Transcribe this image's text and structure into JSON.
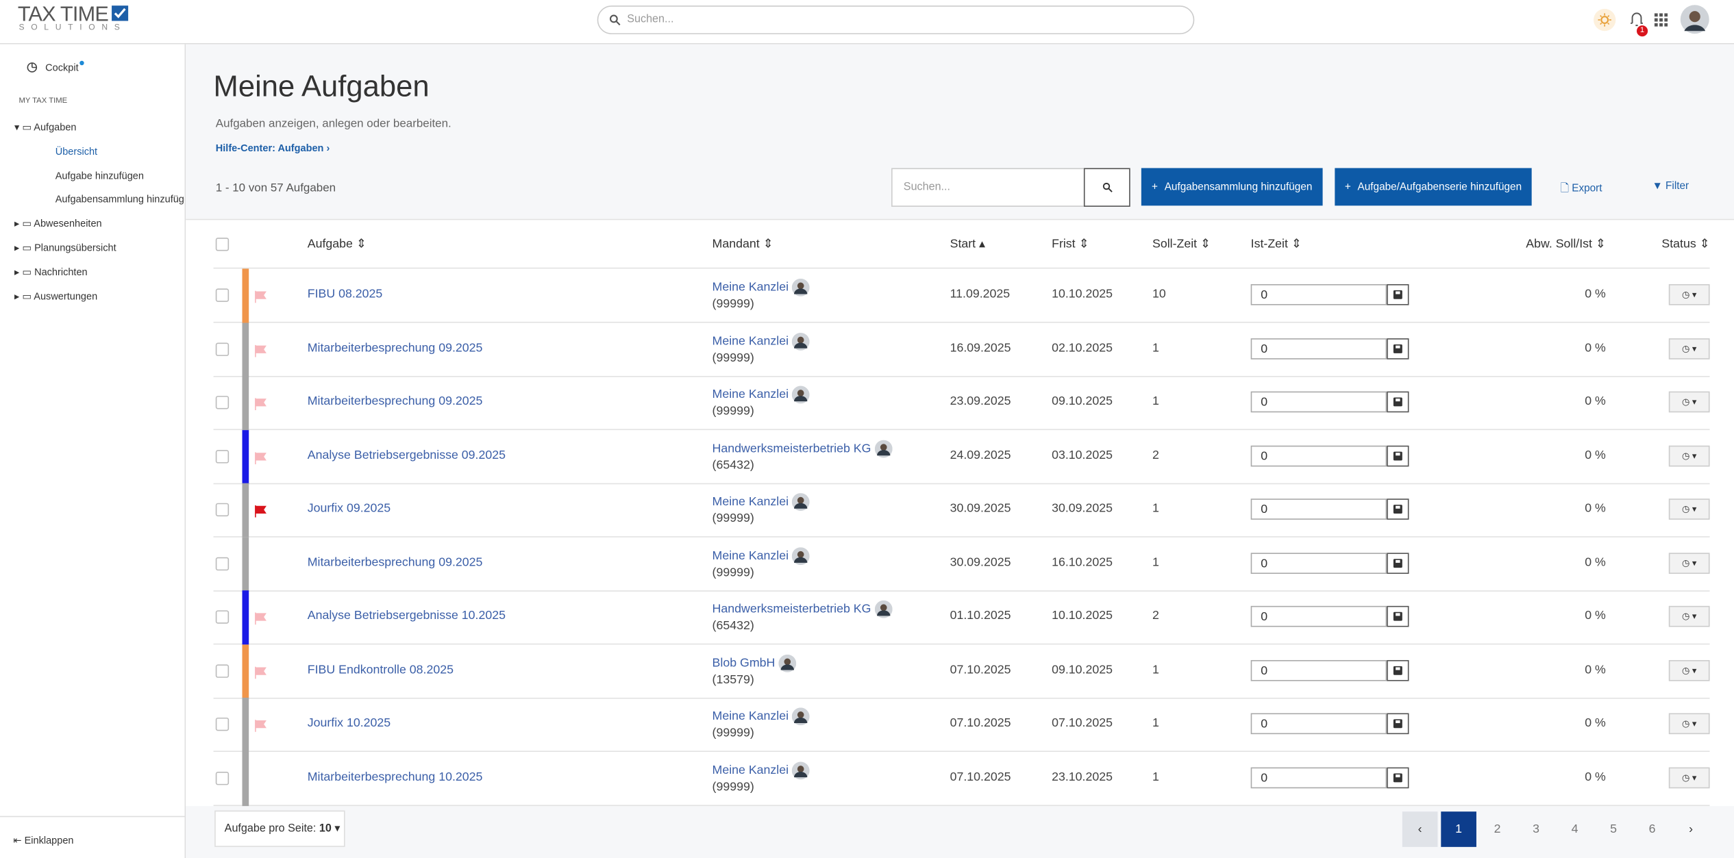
{
  "header": {
    "logo_line1": "TAX TIME",
    "logo_line2": "SOLUTIONS",
    "search_placeholder": "Suchen...",
    "notification_count": "1"
  },
  "sidebar": {
    "cockpit": "Cockpit",
    "section": "MY TAX TIME",
    "nav": [
      {
        "label": "Aufgaben",
        "children": [
          "Übersicht",
          "Aufgabe hinzufügen",
          "Aufgabensammlung hinzufügen"
        ]
      },
      {
        "label": "Abwesenheiten"
      },
      {
        "label": "Planungsübersicht"
      },
      {
        "label": "Nachrichten"
      },
      {
        "label": "Auswertungen"
      }
    ],
    "collapse": "Einklappen"
  },
  "page": {
    "title": "Meine Aufgaben",
    "subtitle": "Aufgaben anzeigen, anlegen oder bearbeiten.",
    "help_link": "Hilfe-Center: Aufgaben",
    "count": "1 - 10 von 57 Aufgaben",
    "search_placeholder": "Suchen...",
    "buttons": [
      "Aufgabensammlung hinzufügen",
      "Aufgabe/Aufgabenserie hinzufügen"
    ],
    "export": "Export",
    "filter": "Filter"
  },
  "table": {
    "columns": [
      "Aufgabe",
      "Mandant",
      "Start",
      "Frist",
      "Soll-Zeit",
      "Ist-Zeit",
      "Abw. Soll/Ist",
      "Status"
    ],
    "rows": [
      {
        "stripe": "#f0954a",
        "flag": "#f7b6bb",
        "task": "FIBU 08.2025",
        "client": "Meine Kanzlei",
        "client_id": "(99999)",
        "start": "11.09.2025",
        "due": "10.10.2025",
        "target": 10,
        "actual": "0",
        "deviation": "0 %"
      },
      {
        "stripe": "#a6a6a6",
        "flag": "#f7b6bb",
        "task": "Mitarbeiterbesprechung 09.2025",
        "client": "Meine Kanzlei",
        "client_id": "(99999)",
        "start": "16.09.2025",
        "due": "02.10.2025",
        "target": 1,
        "actual": "0",
        "deviation": "0 %"
      },
      {
        "stripe": "#a6a6a6",
        "flag": "#f7b6bb",
        "task": "Mitarbeiterbesprechung 09.2025",
        "client": "Meine Kanzlei",
        "client_id": "(99999)",
        "start": "23.09.2025",
        "due": "09.10.2025",
        "target": 1,
        "actual": "0",
        "deviation": "0 %"
      },
      {
        "stripe": "#1a1ae6",
        "flag": "#f7b6bb",
        "task": "Analyse Betriebsergebnisse 09.2025",
        "client": "Handwerksmeisterbetrieb KG",
        "client_id": "(65432)",
        "start": "24.09.2025",
        "due": "03.10.2025",
        "target": 2,
        "actual": "0",
        "deviation": "0 %"
      },
      {
        "stripe": "#a6a6a6",
        "flag": "#d9141c",
        "task": "Jourfix 09.2025",
        "client": "Meine Kanzlei",
        "client_id": "(99999)",
        "start": "30.09.2025",
        "due": "30.09.2025",
        "target": 1,
        "actual": "0",
        "deviation": "0 %"
      },
      {
        "stripe": "#a6a6a6",
        "flag": null,
        "task": "Mitarbeiterbesprechung 09.2025",
        "client": "Meine Kanzlei",
        "client_id": "(99999)",
        "start": "30.09.2025",
        "due": "16.10.2025",
        "target": 1,
        "actual": "0",
        "deviation": "0 %"
      },
      {
        "stripe": "#1a1ae6",
        "flag": "#f7b6bb",
        "task": "Analyse Betriebsergebnisse 10.2025",
        "client": "Handwerksmeisterbetrieb KG",
        "client_id": "(65432)",
        "start": "01.10.2025",
        "due": "10.10.2025",
        "target": 2,
        "actual": "0",
        "deviation": "0 %"
      },
      {
        "stripe": "#f0954a",
        "flag": "#f7b6bb",
        "task": "FIBU Endkontrolle 08.2025",
        "client": "Blob GmbH",
        "client_id": "(13579)",
        "start": "07.10.2025",
        "due": "09.10.2025",
        "target": 1,
        "actual": "0",
        "deviation": "0 %"
      },
      {
        "stripe": "#a6a6a6",
        "flag": "#f7b6bb",
        "task": "Jourfix 10.2025",
        "client": "Meine Kanzlei",
        "client_id": "(99999)",
        "start": "07.10.2025",
        "due": "07.10.2025",
        "target": 1,
        "actual": "0",
        "deviation": "0 %"
      },
      {
        "stripe": "#a6a6a6",
        "flag": null,
        "task": "Mitarbeiterbesprechung 10.2025",
        "client": "Meine Kanzlei",
        "client_id": "(99999)",
        "start": "07.10.2025",
        "due": "23.10.2025",
        "target": 1,
        "actual": "0",
        "deviation": "0 %"
      }
    ]
  },
  "footer": {
    "per_page_label": "Aufgabe pro Seite:",
    "per_page": 10,
    "pages": [
      1,
      2,
      3,
      4,
      5,
      6
    ],
    "current_page": 1
  }
}
